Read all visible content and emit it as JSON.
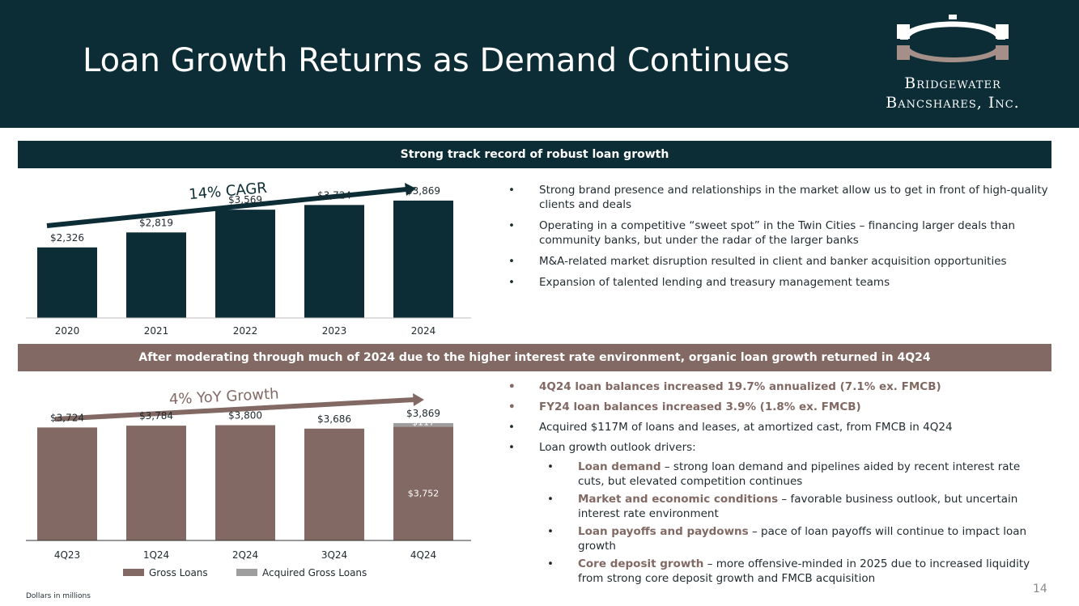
{
  "header": {
    "title": "Loan Growth Returns as Demand Continues",
    "logo_line1": "Bridgewater",
    "logo_line2": "Bancshares, Inc."
  },
  "section1": {
    "banner": "Strong track record of robust loan growth",
    "arrow_label": "14% CAGR",
    "bullets": [
      "Strong brand presence and relationships in the market allow us to get in front of high-quality clients and deals",
      "Operating in a competitive “sweet spot” in the Twin Cities – financing larger deals than community banks, but under the radar of the larger banks",
      "M&A-related market disruption resulted in client and banker acquisition opportunities",
      "Expansion of talented lending and treasury management teams"
    ]
  },
  "section2": {
    "banner": "After moderating through much of 2024 due to the higher interest rate environment, organic loan growth returned in 4Q24",
    "arrow_label": "4% YoY Growth",
    "bullets": [
      "4Q24 loan balances increased 19.7% annualized (7.1% ex. FMCB)",
      "FY24 loan balances increased 3.9% (1.8% ex. FMCB)",
      "Acquired $117M of loans and leases, at amortized cast, from FMCB in 4Q24",
      "Loan growth outlook drivers:"
    ],
    "drivers": [
      {
        "label": "Loan demand",
        "text": " – strong loan demand and pipelines aided by recent interest rate cuts, but elevated competition continues"
      },
      {
        "label": "Market and economic conditions",
        "text": " – favorable business outlook, but uncertain interest rate environment"
      },
      {
        "label": "Loan payoffs and paydowns",
        "text": " – pace of loan payoffs will continue to impact loan growth"
      },
      {
        "label": "Core deposit growth",
        "text": " – more offensive-minded in 2025 due to increased liquidity from strong core deposit growth and FMCB acquisition"
      }
    ]
  },
  "chart_data": [
    {
      "type": "bar",
      "title": "",
      "categories": [
        "2020",
        "2021",
        "2022",
        "2023",
        "2024"
      ],
      "values": [
        2326,
        2819,
        3569,
        3724,
        3869
      ],
      "labels": [
        "$2,326",
        "$2,819",
        "$3,569",
        "$3,724",
        "$3,869"
      ],
      "ylim": [
        0,
        4800
      ],
      "xlabel": "",
      "ylabel": ""
    },
    {
      "type": "bar",
      "stacked": true,
      "categories": [
        "4Q23",
        "1Q24",
        "2Q24",
        "3Q24",
        "4Q24"
      ],
      "series": [
        {
          "name": "Gross Loans",
          "values": [
            3724,
            3784,
            3800,
            3686,
            3752
          ]
        },
        {
          "name": "Acquired Gross Loans",
          "values": [
            0,
            0,
            0,
            0,
            117
          ]
        }
      ],
      "total_labels": [
        "$3,724",
        "$3,784",
        "$3,800",
        "$3,686",
        "$3,869"
      ],
      "segment_labels": {
        "gross_4q24": "$3,752",
        "acquired_4q24": "$117"
      },
      "ylim": [
        0,
        4400
      ],
      "xlabel": "",
      "ylabel": ""
    }
  ],
  "colors": {
    "navy": "#0c2d36",
    "mauve": "#826963",
    "gray": "#9e9e9e",
    "white": "#ffffff"
  },
  "footer": {
    "note": "Dollars in millions",
    "page": "14"
  }
}
